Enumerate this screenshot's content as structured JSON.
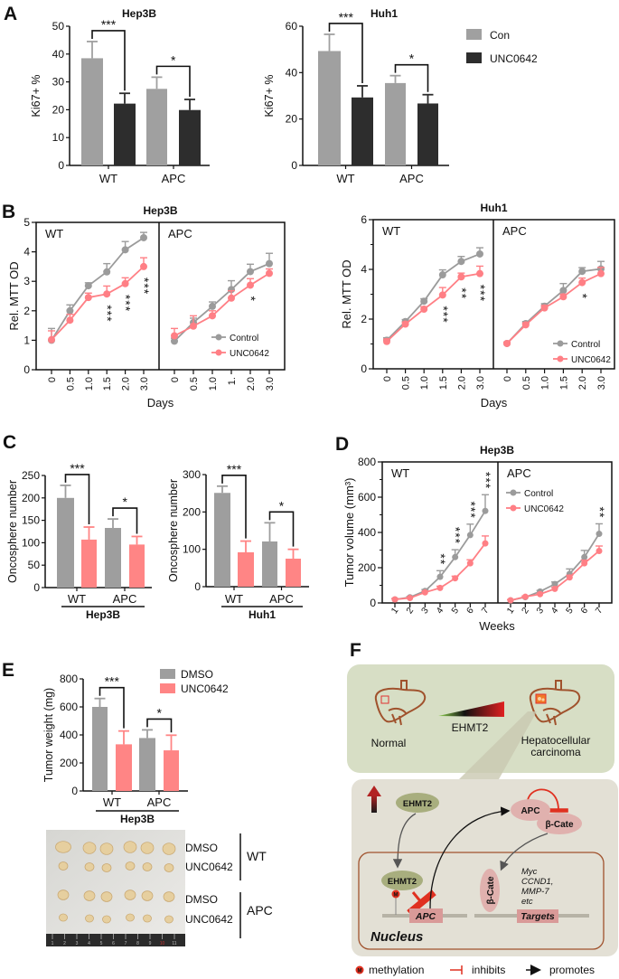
{
  "panel_labels": [
    "A",
    "B",
    "C",
    "D",
    "E",
    "F"
  ],
  "colors": {
    "con_gray": "#a0a0a0",
    "unc_black": "#2d2d2d",
    "bar_gray": "#9e9e9e",
    "bar_pink": "#ff8585",
    "line_gray": "#9b9b9b",
    "line_pink": "#ff7f85"
  },
  "chart_data": [
    {
      "panel": "A",
      "type": "bar",
      "title": "Hep3B",
      "ylabel": "Ki67+ %",
      "ylim": [
        0,
        50
      ],
      "yticks": [
        "0",
        "10",
        "20",
        "30",
        "40",
        "50"
      ],
      "categories": [
        "WT",
        "APC"
      ],
      "series": [
        {
          "name": "Con",
          "values": [
            38.5,
            27.5
          ],
          "errors": [
            6,
            4.2
          ]
        },
        {
          "name": "UNC0642",
          "values": [
            22.2,
            19.9
          ],
          "errors": [
            3.7,
            3.8
          ]
        }
      ],
      "significance": [
        "***",
        "*"
      ],
      "legend": "right"
    },
    {
      "panel": "A",
      "type": "bar",
      "title": "Huh1",
      "ylabel": "Ki67+ %",
      "ylim": [
        0,
        60
      ],
      "yticks": [
        "0",
        "20",
        "40",
        "60"
      ],
      "categories": [
        "WT",
        "APC"
      ],
      "series": [
        {
          "name": "Con",
          "values": [
            49.3,
            35.5
          ],
          "errors": [
            7.2,
            3.2
          ]
        },
        {
          "name": "UNC0642",
          "values": [
            29.3,
            26.7
          ],
          "errors": [
            5,
            3.8
          ]
        }
      ],
      "significance": [
        "***",
        "*"
      ]
    },
    {
      "panel": "B",
      "type": "line",
      "title": "Hep3B",
      "ylabel": "Rel. MTT OD",
      "xlabel": "Days",
      "ylim": [
        0,
        5
      ],
      "yticks": [
        "0",
        "1",
        "2",
        "3",
        "4",
        "5"
      ],
      "panels": [
        {
          "label": "WT",
          "x": [
            "0",
            "0.5",
            "1.0",
            "1.5",
            "2.0",
            "3.0"
          ],
          "series": [
            {
              "name": "Control",
              "values": [
                1.0,
                2.0,
                2.85,
                3.32,
                4.07,
                4.48
              ],
              "errors": [
                0.4,
                0.2,
                0.1,
                0.28,
                0.28,
                0.18
              ]
            },
            {
              "name": "UNC0642",
              "values": [
                1.02,
                1.68,
                2.45,
                2.57,
                2.92,
                3.5
              ],
              "errors": [
                0.3,
                0.2,
                0.15,
                0.27,
                0.2,
                0.3
              ]
            }
          ],
          "significance": [
            "",
            "",
            "",
            "***",
            "***",
            "***"
          ]
        },
        {
          "label": "APC",
          "x": [
            "0",
            "0.5",
            "1.0",
            "1.",
            "2.0",
            "3.0"
          ],
          "series": [
            {
              "name": "Control",
              "values": [
                0.97,
                1.6,
                2.15,
                2.72,
                3.33,
                3.6
              ],
              "errors": [
                0.1,
                0.15,
                0.15,
                0.3,
                0.25,
                0.35
              ]
            },
            {
              "name": "UNC0642",
              "values": [
                1.15,
                1.48,
                1.83,
                2.43,
                2.87,
                3.27
              ],
              "errors": [
                0.25,
                0.35,
                0.17,
                0.25,
                0.22,
                0.15
              ]
            }
          ],
          "significance": [
            "",
            "",
            "",
            "",
            "*",
            ""
          ]
        }
      ],
      "legend": "lower-right"
    },
    {
      "panel": "B",
      "type": "line",
      "title": "Huh1",
      "ylabel": "Rel. MTT OD",
      "xlabel": "Days",
      "ylim": [
        0,
        6
      ],
      "yticks": [
        "0",
        "2",
        "4",
        "6"
      ],
      "panels": [
        {
          "label": "WT",
          "x": [
            "0",
            "0.5",
            "1.0",
            "1.5",
            "2.0",
            "3.0"
          ],
          "series": [
            {
              "name": "Control",
              "values": [
                1.15,
                1.9,
                2.72,
                3.78,
                4.32,
                4.62
              ],
              "errors": [
                0.1,
                0.08,
                0.1,
                0.2,
                0.2,
                0.25
              ]
            },
            {
              "name": "UNC0642",
              "values": [
                1.1,
                1.8,
                2.4,
                2.97,
                3.7,
                3.83
              ],
              "errors": [
                0.1,
                0.08,
                0.1,
                0.3,
                0.15,
                0.3
              ]
            }
          ],
          "significance": [
            "",
            "",
            "",
            "***",
            "**",
            "***"
          ]
        },
        {
          "label": "APC",
          "x": [
            "0",
            "0.5",
            "1.0",
            "1.5",
            "2.0",
            "3.0"
          ],
          "series": [
            {
              "name": "Control",
              "values": [
                1.02,
                1.82,
                2.52,
                3.15,
                3.92,
                4.02
              ],
              "errors": [
                0.05,
                0.08,
                0.1,
                0.28,
                0.15,
                0.3
              ]
            },
            {
              "name": "UNC0642",
              "values": [
                1.02,
                1.77,
                2.45,
                2.9,
                3.47,
                3.83
              ],
              "errors": [
                0.05,
                0.08,
                0.1,
                0.1,
                0.18,
                0.25
              ]
            }
          ],
          "significance": [
            "",
            "",
            "",
            "",
            "*",
            ""
          ]
        }
      ],
      "legend": "lower-right"
    },
    {
      "panel": "C",
      "type": "bar",
      "ylabel": "Oncosphere number",
      "ylim": [
        0,
        250
      ],
      "yticks": [
        "0",
        "50",
        "100",
        "150",
        "200",
        "250"
      ],
      "categories": [
        "WT",
        "APC"
      ],
      "group_label": "Hep3B",
      "series": [
        {
          "values": [
            200,
            133
          ],
          "errors": [
            28,
            20
          ]
        },
        {
          "values": [
            107,
            96
          ],
          "errors": [
            28,
            18
          ]
        }
      ],
      "significance": [
        "***",
        "*"
      ]
    },
    {
      "panel": "C",
      "type": "bar",
      "ylabel": "Oncosphere number",
      "ylim": [
        0,
        300
      ],
      "yticks": [
        "0",
        "100",
        "200",
        "300"
      ],
      "categories": [
        "WT",
        "APC"
      ],
      "group_label": "Huh1",
      "series": [
        {
          "values": [
            251,
            121
          ],
          "errors": [
            18,
            50
          ]
        },
        {
          "values": [
            92,
            75
          ],
          "errors": [
            30,
            25
          ]
        }
      ],
      "significance": [
        "***",
        "*"
      ]
    },
    {
      "panel": "D",
      "type": "line",
      "title": "Hep3B",
      "ylabel": "Tumor volume (mm³)",
      "xlabel": "Weeks",
      "ylim": [
        0,
        800
      ],
      "yticks": [
        "0",
        "200",
        "400",
        "600",
        "800"
      ],
      "panels": [
        {
          "label": "WT",
          "x": [
            "1",
            "2",
            "3",
            "4",
            "5",
            "6",
            "7"
          ],
          "series": [
            {
              "name": "Control",
              "values": [
                20,
                32,
                68,
                148,
                260,
                385,
                522
              ],
              "errors": [
                5,
                5,
                8,
                35,
                42,
                62,
                92
              ]
            },
            {
              "name": "UNC0642",
              "values": [
                20,
                28,
                60,
                85,
                140,
                225,
                338
              ],
              "errors": [
                5,
                5,
                6,
                10,
                12,
                20,
                42
              ]
            }
          ],
          "significance": [
            "",
            "",
            "",
            "**",
            "***",
            "***",
            "***"
          ]
        },
        {
          "label": "APC",
          "x": [
            "1",
            "2",
            "3",
            "4",
            "5",
            "6",
            "7"
          ],
          "series": [
            {
              "name": "Control",
              "values": [
                15,
                33,
                65,
                107,
                165,
                260,
                392
              ],
              "errors": [
                4,
                5,
                6,
                12,
                28,
                38,
                57
              ]
            },
            {
              "name": "UNC0642",
              "values": [
                15,
                35,
                50,
                80,
                145,
                225,
                295
              ],
              "errors": [
                4,
                5,
                6,
                8,
                12,
                18,
                28
              ]
            }
          ],
          "significance": [
            "",
            "",
            "",
            "",
            "",
            "",
            "**"
          ]
        }
      ],
      "legend": "upper-left of APC"
    },
    {
      "panel": "E",
      "type": "bar",
      "ylabel": "Tumor weight (mg)",
      "ylim": [
        0,
        800
      ],
      "yticks": [
        "0",
        "200",
        "400",
        "600",
        "800"
      ],
      "categories": [
        "WT",
        "APC"
      ],
      "group_label": "Hep3B",
      "series": [
        {
          "name": "DMSO",
          "values": [
            600,
            378
          ],
          "errors": [
            60,
            58
          ]
        },
        {
          "name": "UNC0642",
          "values": [
            333,
            290
          ],
          "errors": [
            95,
            108
          ]
        }
      ],
      "significance": [
        "***",
        "*"
      ],
      "legend": "top-right"
    }
  ],
  "photo": {
    "row_labels": [
      "DMSO",
      "UNC0642",
      "DMSO",
      "UNC0642"
    ],
    "group_labels": [
      "WT",
      "APC"
    ],
    "ruler_numbers": [
      "1",
      "2",
      "3",
      "4",
      "5",
      "6",
      "7",
      "8",
      "9",
      "10",
      "11"
    ]
  },
  "diagram": {
    "normal": "Normal",
    "gradient_label": "EHMT2",
    "hcc_line1": "Hepatocellular",
    "hcc_line2": "carcinoma",
    "ehmt2_cytoplasm": "EHMT2",
    "ehmt2_nucleus": "EHMT2",
    "methyl_mark": "M",
    "apc_gene": "APC",
    "apc_protein": "APC",
    "bcat_cytoplasm": "β-Cate",
    "bcat_nucleus": "β-Cate",
    "target_genes": [
      "Myc",
      "CCND1,",
      "MMP-7",
      "etc"
    ],
    "targets": "Targets",
    "nucleus": "Nucleus",
    "legend": {
      "methylation_mark": "M",
      "methylation": "methylation",
      "inhibits": "inhibits",
      "promotes": "promotes"
    }
  }
}
